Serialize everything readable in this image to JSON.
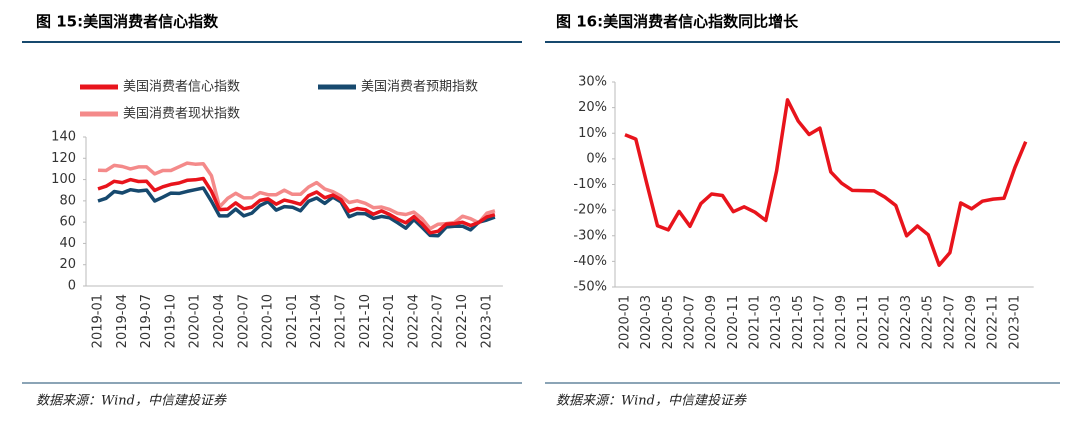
{
  "chart_data": [
    {
      "type": "line",
      "title": "图 15:美国消费者信心指数",
      "source": "数据来源：Wind，中信建投证券",
      "categories": [
        "2019-01",
        null,
        null,
        "2019-04",
        null,
        null,
        "2019-07",
        null,
        null,
        "2019-10",
        null,
        null,
        "2020-01",
        null,
        null,
        "2020-04",
        null,
        null,
        "2020-07",
        null,
        null,
        "2020-10",
        null,
        null,
        "2021-01",
        null,
        null,
        "2021-04",
        null,
        null,
        "2021-07",
        null,
        null,
        "2021-10",
        null,
        null,
        "2022-01",
        null,
        null,
        "2022-04",
        null,
        null,
        "2022-07",
        null,
        null,
        "2022-10",
        null,
        null,
        "2023-01",
        null
      ],
      "series": [
        {
          "name": "美国消费者信心指数",
          "color": "#e8141c",
          "values": [
            91.2,
            93.8,
            98.4,
            97.2,
            100.0,
            98.2,
            98.4,
            89.8,
            93.2,
            95.5,
            96.8,
            99.3,
            99.8,
            101.0,
            89.1,
            71.8,
            72.3,
            78.1,
            72.5,
            74.1,
            80.4,
            81.8,
            76.9,
            80.7,
            79.0,
            76.8,
            84.9,
            88.3,
            82.9,
            85.5,
            81.2,
            70.3,
            72.8,
            71.7,
            67.4,
            70.6,
            67.2,
            62.8,
            59.4,
            65.2,
            58.4,
            50.0,
            51.5,
            58.2,
            58.6,
            59.9,
            56.8,
            59.7,
            64.9,
            67.0
          ]
        },
        {
          "name": "美国消费者预期指数",
          "color": "#17496e",
          "values": [
            79.9,
            82.4,
            88.8,
            87.4,
            90.5,
            89.3,
            90.1,
            79.9,
            83.4,
            87.3,
            87.0,
            88.9,
            90.5,
            92.1,
            79.7,
            65.9,
            65.9,
            72.3,
            65.9,
            68.5,
            75.6,
            79.2,
            71.3,
            74.6,
            74.0,
            70.7,
            79.7,
            82.7,
            77.6,
            83.5,
            79.0,
            65.1,
            68.1,
            67.9,
            63.5,
            65.4,
            64.1,
            59.4,
            54.3,
            62.5,
            55.2,
            47.5,
            47.3,
            55.4,
            56.2,
            56.2,
            52.7,
            59.9,
            62.0,
            64.7
          ]
        },
        {
          "name": "美国消费者现状指数",
          "color": "#f48a8a",
          "values": [
            108.8,
            108.5,
            113.3,
            112.3,
            110.0,
            111.9,
            111.9,
            105.3,
            108.5,
            108.5,
            112.0,
            115.5,
            114.4,
            114.8,
            103.7,
            74.3,
            82.3,
            87.1,
            82.8,
            82.9,
            87.8,
            85.8,
            85.8,
            90.0,
            86.2,
            86.2,
            93.0,
            97.2,
            91.1,
            88.6,
            84.5,
            78.5,
            80.1,
            77.7,
            73.6,
            74.2,
            72.0,
            68.2,
            67.2,
            69.4,
            63.3,
            53.8,
            58.1,
            58.6,
            59.7,
            65.6,
            63.2,
            59.4,
            68.4,
            70.7
          ]
        }
      ],
      "ylim": [
        0,
        140
      ],
      "yticks": [
        0,
        20,
        40,
        60,
        80,
        100,
        120,
        140
      ],
      "grid": false,
      "legend": "top"
    },
    {
      "type": "line",
      "title": "图 16:美国消费者信心指数同比增长",
      "source": "数据来源：Wind，中信建投证券",
      "categories": [
        "2020-01",
        null,
        "2020-03",
        null,
        "2020-05",
        null,
        "2020-07",
        null,
        "2020-09",
        null,
        "2020-11",
        null,
        "2021-01",
        null,
        "2021-03",
        null,
        "2021-05",
        null,
        "2021-07",
        null,
        "2021-09",
        null,
        "2021-11",
        null,
        "2022-01",
        null,
        "2022-03",
        null,
        "2022-05",
        null,
        "2022-07",
        null,
        "2022-09",
        null,
        "2022-11",
        null,
        "2023-01",
        null
      ],
      "values": [
        9.4,
        7.7,
        -9.5,
        -26.1,
        -27.7,
        -20.5,
        -26.3,
        -17.5,
        -13.7,
        -14.3,
        -20.6,
        -18.7,
        -20.8,
        -24.0,
        -4.7,
        23.0,
        14.7,
        9.5,
        12.0,
        -5.1,
        -9.5,
        -12.3,
        -12.4,
        -12.5,
        -14.9,
        -18.2,
        -30.0,
        -26.2,
        -29.6,
        -41.5,
        -36.6,
        -17.2,
        -19.5,
        -16.5,
        -15.7,
        -15.4,
        -3.4,
        6.7
      ],
      "color": "#e8141c",
      "ylim": [
        -50,
        30
      ],
      "yticks": [
        {
          "value": -50,
          "label": "-50%"
        },
        {
          "value": -40,
          "label": "-40%"
        },
        {
          "value": -30,
          "label": "-30%"
        },
        {
          "value": -20,
          "label": "-20%"
        },
        {
          "value": -10,
          "label": "-10%"
        },
        {
          "value": 0,
          "label": "0%"
        },
        {
          "value": 10,
          "label": "10%"
        },
        {
          "value": 20,
          "label": "20%"
        },
        {
          "value": 30,
          "label": "30%"
        }
      ],
      "grid": false
    }
  ]
}
